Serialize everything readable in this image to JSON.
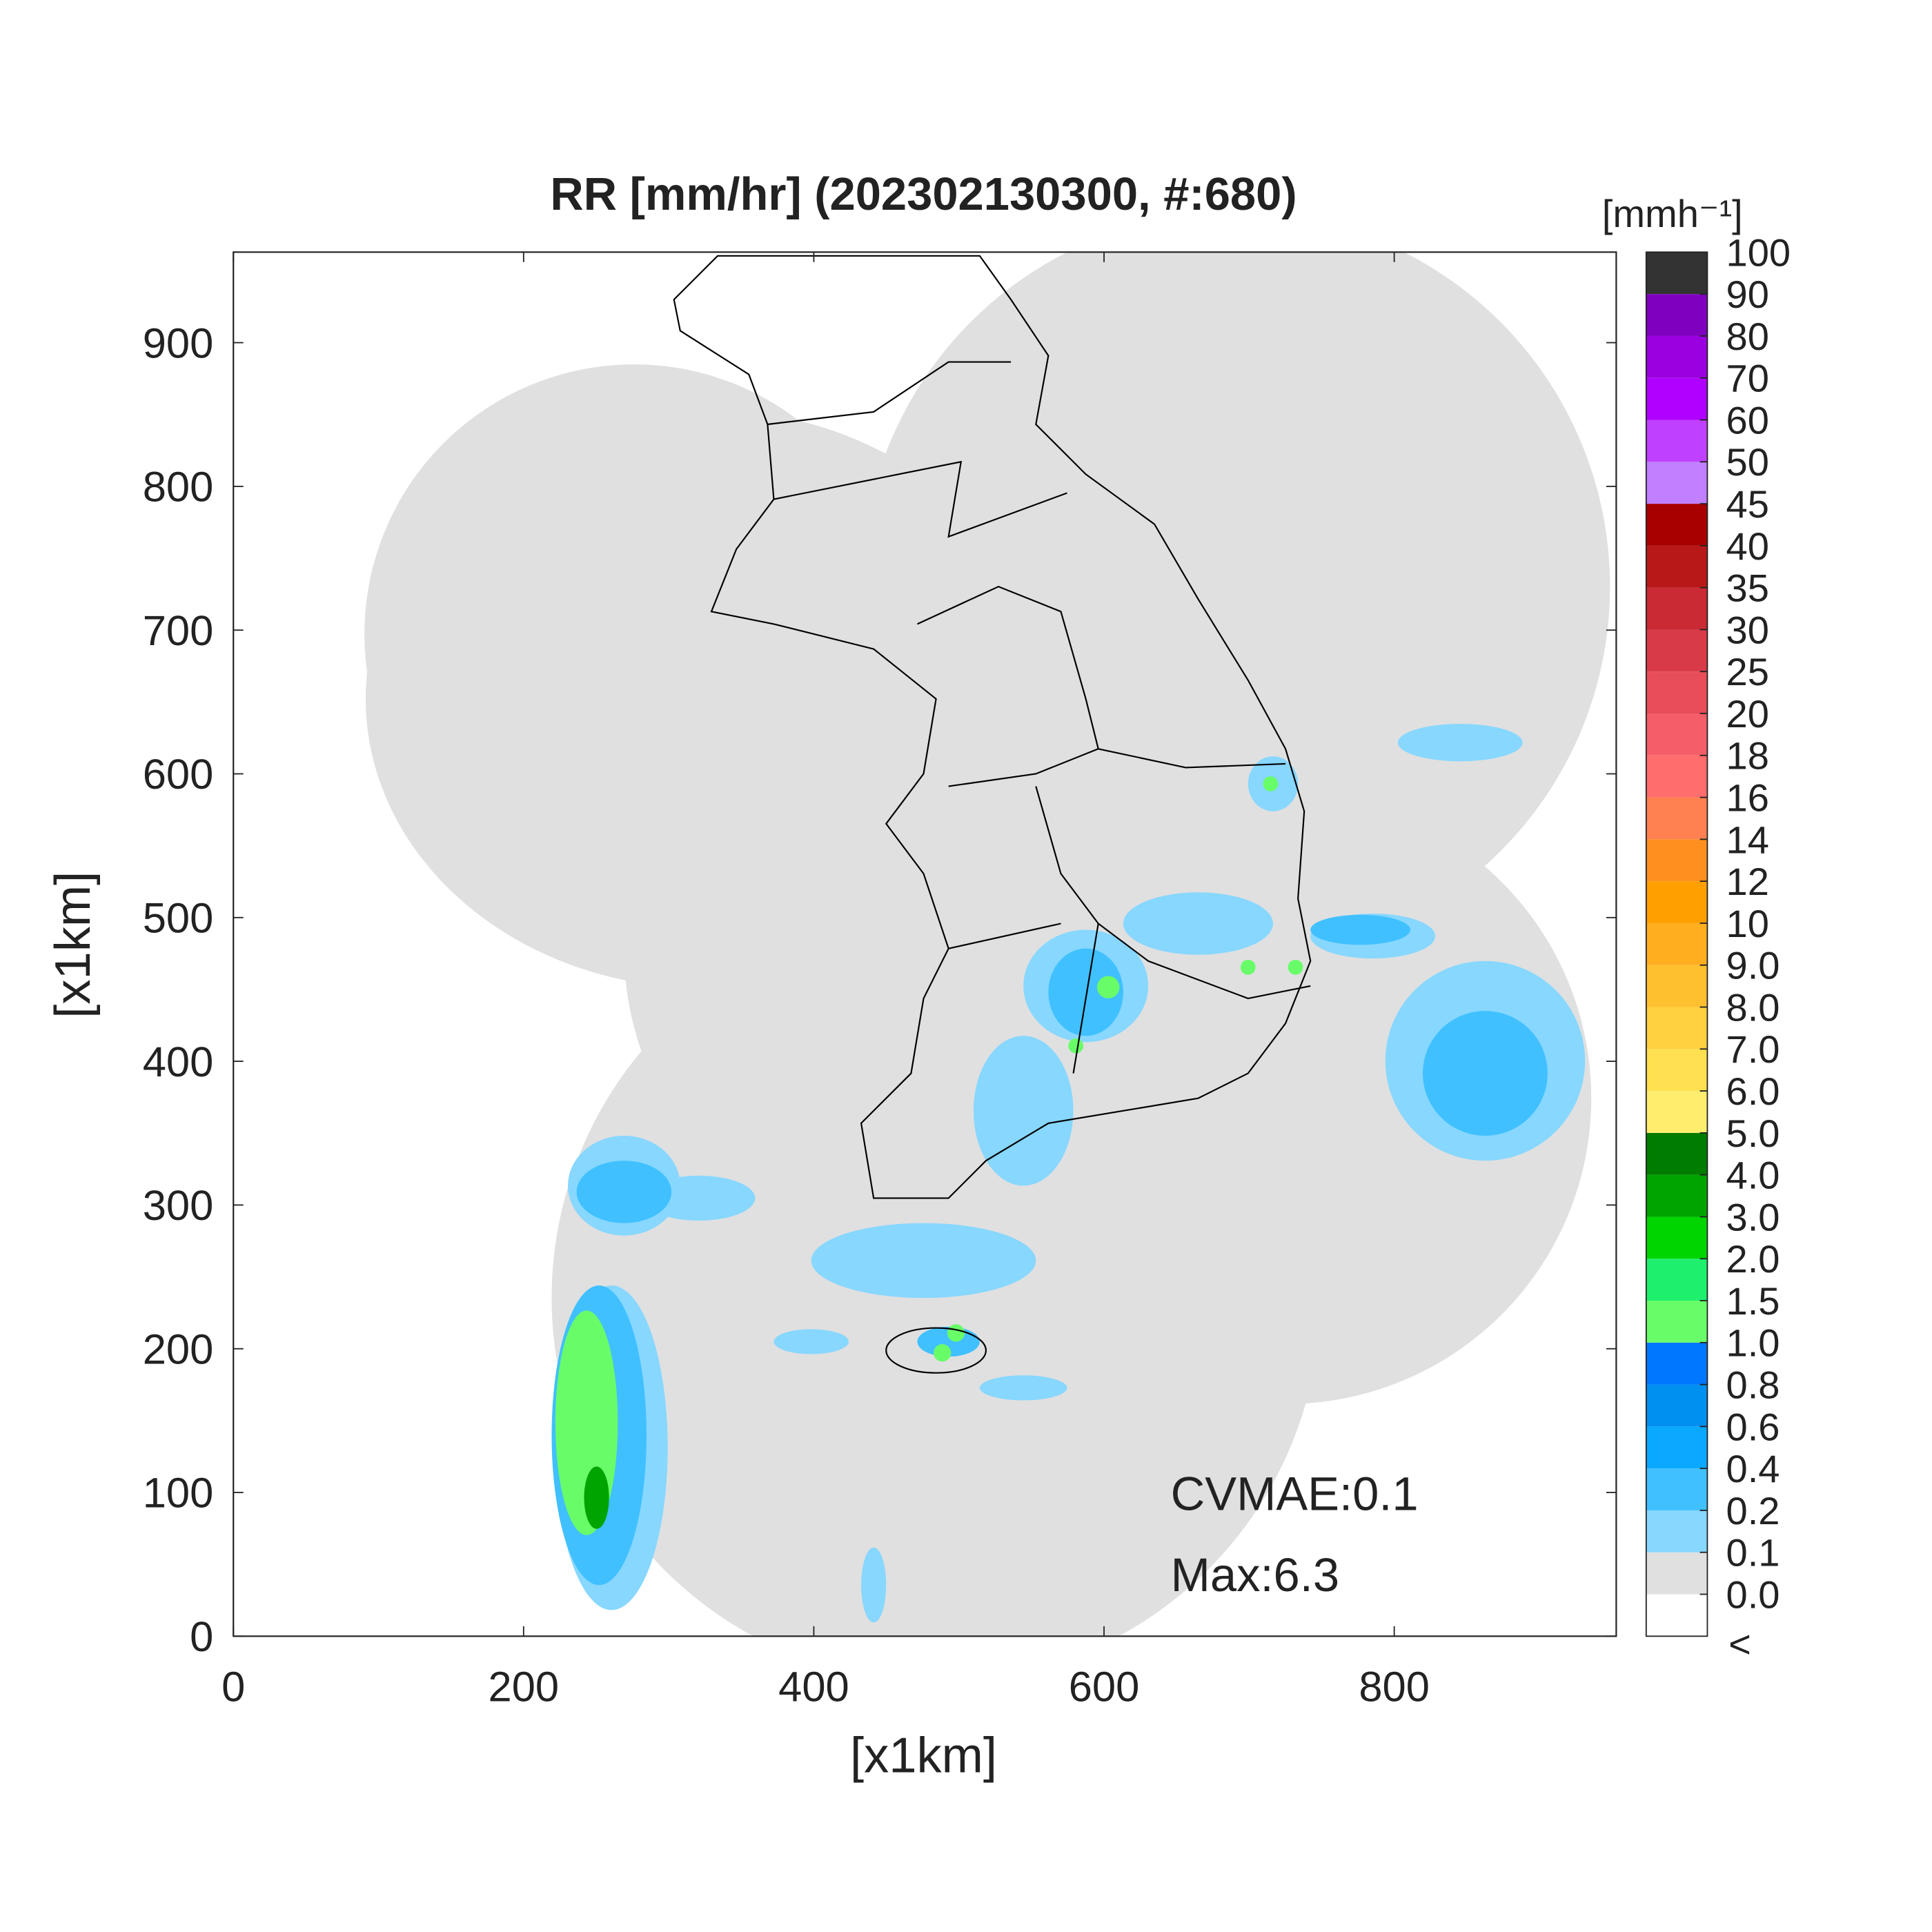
{
  "title": "RR [mm/hr] (202302130300, #:680)",
  "x_axis": {
    "label": "[x1km]",
    "lim": [
      0,
      953
    ],
    "ticks": [
      0,
      200,
      400,
      600,
      800
    ]
  },
  "y_axis": {
    "label": "[x1km]",
    "lim": [
      0,
      963
    ],
    "ticks": [
      0,
      100,
      200,
      300,
      400,
      500,
      600,
      700,
      800,
      900
    ]
  },
  "colorbar": {
    "unit": "[mmh⁻¹]",
    "under_label": "<",
    "ticks": [
      {
        "value": 0,
        "label": "0.0"
      },
      0.1,
      0.2,
      0.4,
      0.6,
      0.8,
      {
        "value": 1,
        "label": "1.0"
      },
      1.5,
      {
        "value": 2,
        "label": "2.0"
      },
      {
        "value": 3,
        "label": "3.0"
      },
      {
        "value": 4,
        "label": "4.0"
      },
      {
        "value": 5,
        "label": "5.0"
      },
      {
        "value": 6,
        "label": "6.0"
      },
      {
        "value": 7,
        "label": "7.0"
      },
      {
        "value": 8,
        "label": "8.0"
      },
      {
        "value": 9,
        "label": "9.0"
      },
      10,
      12,
      14,
      16,
      18,
      20,
      25,
      30,
      35,
      40,
      45,
      50,
      60,
      70,
      80,
      90,
      100
    ],
    "colors": [
      "#ffffff",
      "#e0e0e0",
      "#87d7ff",
      "#40c0ff",
      "#0aa9ff",
      "#0090f0",
      "#0077ff",
      "#69fc69",
      "#1ef06e",
      "#00d500",
      "#00a400",
      "#007d00",
      "#ffee6e",
      "#ffe050",
      "#ffd040",
      "#ffc030",
      "#ffae20",
      "#ffa000",
      "#ff9020",
      "#ff8050",
      "#ff6d6d",
      "#f55e68",
      "#e84e5a",
      "#d83a48",
      "#c92a34",
      "#b81818",
      "#a80000",
      "#c080ff",
      "#c040ff",
      "#b000ff",
      "#9a00e0",
      "#8000c0",
      "#333333"
    ]
  },
  "annotations": [
    "CVMAE:0.1",
    "Max:6.3"
  ]
}
